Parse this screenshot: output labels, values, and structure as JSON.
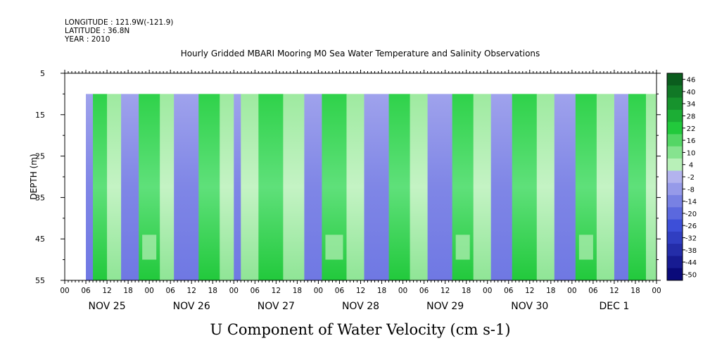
{
  "header": {
    "longitude": "LONGITUDE : 121.9W(-121.9)",
    "latitude": "LATITUDE : 36.8N",
    "year": "YEAR : 2010",
    "title": "Hourly Gridded MBARI Mooring M0 Sea Water Temperature and Salinity Observations"
  },
  "chart_data": {
    "type": "heatmap",
    "title": "Hourly Gridded MBARI Mooring M0 Sea Water Temperature and Salinity Observations",
    "variable": "U Component of Water Velocity (cm s-1)",
    "xlabel": "U Component of Water Velocity (cm s-1)",
    "ylabel": "DEPTH (m)",
    "y_axis": {
      "ticks": [
        5,
        15,
        25,
        35,
        45,
        55
      ],
      "range": [
        5,
        55
      ],
      "inverted": true
    },
    "x_axis": {
      "hour_ticks": [
        "00",
        "06",
        "12",
        "18",
        "00",
        "06",
        "12",
        "18",
        "00",
        "06",
        "12",
        "18",
        "00",
        "06",
        "12",
        "18",
        "00",
        "06",
        "12",
        "18",
        "00",
        "06",
        "12",
        "18",
        "00",
        "06",
        "12",
        "18",
        "00"
      ],
      "day_labels": [
        "NOV 25",
        "NOV 26",
        "NOV 27",
        "NOV 28",
        "NOV 29",
        "NOV 30",
        "DEC  1"
      ],
      "range_hours": [
        0,
        168
      ]
    },
    "data_extent": {
      "time_start_hour": 6,
      "time_end_hour": 168,
      "depth_top": 10,
      "depth_bottom": 55
    },
    "colorbar": {
      "labels": [
        "46",
        "40",
        "34",
        "28",
        "22",
        "16",
        "10",
        "4",
        "-2",
        "-8",
        "-14",
        "-20",
        "-26",
        "-32",
        "-38",
        "-44",
        "-50"
      ],
      "colors": {
        "strong_positive": "#0b5d1e",
        "positive": "#22c93c",
        "weak_positive": "#b8f0b8",
        "weak_negative": "#b3b3ee",
        "negative": "#3d4fd8",
        "strong_negative": "#0a0a7a"
      }
    },
    "column_bands_hours": [
      [
        6,
        8,
        "neg"
      ],
      [
        8,
        12,
        "pos"
      ],
      [
        12,
        16,
        "wpos"
      ],
      [
        16,
        21,
        "neg"
      ],
      [
        21,
        27,
        "pos"
      ],
      [
        27,
        31,
        "wpos"
      ],
      [
        31,
        38,
        "neg"
      ],
      [
        38,
        44,
        "pos"
      ],
      [
        44,
        48,
        "wpos"
      ],
      [
        48,
        50,
        "neg"
      ],
      [
        50,
        55,
        "wpos"
      ],
      [
        55,
        62,
        "pos"
      ],
      [
        62,
        68,
        "wpos"
      ],
      [
        68,
        73,
        "neg"
      ],
      [
        73,
        80,
        "pos"
      ],
      [
        80,
        85,
        "wpos"
      ],
      [
        85,
        92,
        "neg"
      ],
      [
        92,
        98,
        "pos"
      ],
      [
        98,
        103,
        "wpos"
      ],
      [
        103,
        110,
        "neg"
      ],
      [
        110,
        116,
        "pos"
      ],
      [
        116,
        121,
        "wpos"
      ],
      [
        121,
        127,
        "neg"
      ],
      [
        127,
        134,
        "pos"
      ],
      [
        134,
        139,
        "wpos"
      ],
      [
        139,
        145,
        "neg"
      ],
      [
        145,
        151,
        "pos"
      ],
      [
        151,
        156,
        "wpos"
      ],
      [
        156,
        160,
        "neg"
      ],
      [
        160,
        165,
        "pos"
      ],
      [
        165,
        168,
        "wpos"
      ]
    ]
  }
}
